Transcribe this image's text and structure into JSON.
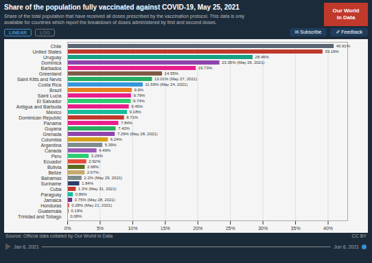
{
  "chart_data": {
    "type": "bar",
    "orientation": "horizontal",
    "title": "Share of the population fully vaccinated against COVID-19, May 25, 2021",
    "subtitle": "Share of the total population that have received all doses prescribed by the vaccination protocol. This data is only\navailable for countries which report the breakdown of doses administered by first and second doses.",
    "source": "Source: Official data collated by Our World in Data",
    "annotations": [
      "Our World\nin Data",
      "LINEAR",
      "LOG",
      "✉  Subscribe",
      "✐  Feedback",
      "CC BY",
      "Jan 6, 2021",
      "Jun 6, 2021"
    ],
    "categories": [
      "Chile",
      "United States",
      "Uruguay",
      "Dominica",
      "Barbados",
      "Greenland",
      "Saint Kitts and Nevis",
      "Costa Rica",
      "Brazil",
      "Saint Lucia",
      "El Salvador",
      "Antigua and Barbuda",
      "Mexico",
      "Dominican Republic",
      "Panama",
      "Guyana",
      "Grenada",
      "Colombia",
      "Argentina",
      "Canada",
      "Peru",
      "Ecuador",
      "Bolivia",
      "Belize",
      "Bahamas",
      "Suriname",
      "Cuba",
      "Paraguay",
      "Jamaica",
      "Honduras",
      "Guatemala",
      "Trinidad and Tobago"
    ],
    "values": [
      40.91,
      39.19,
      28.46,
      23.36,
      19.73,
      14.55,
      13.01,
      11.59,
      9.9,
      9.79,
      9.74,
      9.45,
      9.18,
      8.71,
      7.84,
      7.42,
      7.29,
      6.24,
      5.39,
      4.49,
      3.29,
      2.92,
      2.68,
      2.67,
      2.2,
      1.84,
      1.3,
      0.86,
      0.75,
      0.28,
      0.19,
      0.08
    ],
    "value_labels": [
      "40.91%",
      "39.19%",
      "28.46%",
      "23.36% (May 26, 2021)",
      "19.73%",
      "14.55%",
      "13.01% (May 27, 2021)",
      "11.59% (May 24, 2021)",
      "9.9%",
      "9.79%",
      "9.74%",
      "9.45%",
      "9.18%",
      "8.71%",
      "7.84%",
      "7.42%",
      "7.29% (May 28, 2021)",
      "6.24%",
      "5.39%",
      "4.49%",
      "3.29%",
      "2.92%",
      "2.68%",
      "2.67%",
      "2.2% (May 29, 2021)",
      "1.84%",
      "1.3% (May 31, 2021)",
      "0.86%",
      "0.75% (May 28, 2021)",
      "0.28% (May 21, 2021)",
      "0.19%",
      "0.08%"
    ],
    "data_labels": true,
    "colors": [
      "#5a6473",
      "#c0392b",
      "#16a085",
      "#8e44ad",
      "#e91e8c",
      "#7f5a44",
      "#27ae60",
      "#3498db",
      "#e67e22",
      "#e91e8c",
      "#2ecc71",
      "#e91e8c",
      "#1abc9c",
      "#c0392b",
      "#e91e8c",
      "#27ae60",
      "#8e44ad",
      "#d4a017",
      "#7f8c8d",
      "#9b59b6",
      "#2ecc71",
      "#e74c3c",
      "#5d6d1e",
      "#c8a96e",
      "#7f8c8d",
      "#2c3e6b",
      "#c0392b",
      "#1abc9c",
      "#6c3483",
      "#e74c3c",
      "#7f5a44",
      "#7f8c8d"
    ],
    "xlim": [
      0,
      43
    ],
    "xticks": [
      {
        "value": 0,
        "label": "0%"
      },
      {
        "value": 5,
        "label": "5%"
      },
      {
        "value": 10,
        "label": "10%"
      },
      {
        "value": 15,
        "label": "15%"
      },
      {
        "value": 20,
        "label": "20%"
      },
      {
        "value": 25,
        "label": "25%"
      },
      {
        "value": 30,
        "label": "30%"
      },
      {
        "value": 35,
        "label": "35%"
      },
      {
        "value": 40,
        "label": "40%"
      }
    ],
    "grid": true
  }
}
